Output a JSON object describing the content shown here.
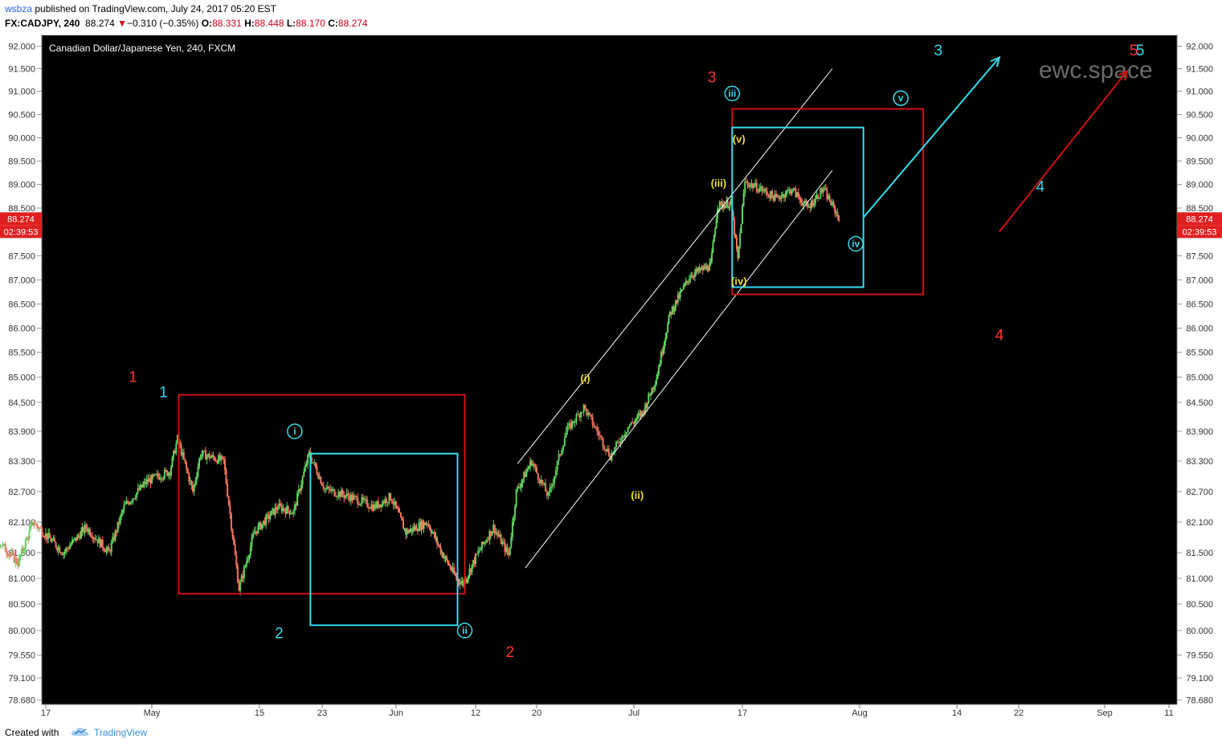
{
  "header": {
    "author": "wsbza",
    "published_text": "published on TradingView.com, July 24, 2017 05:20 EST",
    "symbol": "FX:CADJPY, 240",
    "last": "88.274",
    "change": "−0.310 (−0.35%)",
    "change_arrow": "▼",
    "o_label": "O:",
    "o": "88.331",
    "h_label": "H:",
    "h": "88.448",
    "l_label": "L:",
    "l": "88.170",
    "c_label": "C:",
    "c": "88.274"
  },
  "footer": {
    "created_with": "Created with",
    "brand": "TradingView"
  },
  "watermark": "ewc.space",
  "colors": {
    "up": "#5fd35f",
    "down": "#f07560",
    "red": "#ff3333",
    "cyan": "#33ddee",
    "yellow": "#eedd33",
    "box_red": "#d01010",
    "box_cyan": "#33ddee",
    "price_tag": "#e02020",
    "background": "#000000",
    "white": "#ffffff"
  },
  "chart_data": {
    "type": "candlestick",
    "title": "Canadian Dollar/Japanese Yen, 240, FXCM",
    "ylabel": "",
    "y_ticks": [
      "92.000",
      "91.500",
      "91.000",
      "90.500",
      "90.000",
      "89.500",
      "89.000",
      "88.500",
      "88.000",
      "87.500",
      "87.000",
      "86.500",
      "86.000",
      "85.500",
      "85.000",
      "84.500",
      "83.900",
      "83.300",
      "82.700",
      "82.100",
      "81.500",
      "81.000",
      "80.500",
      "80.000",
      "79.550",
      "79.100",
      "78.680"
    ],
    "x_ticks": [
      "17",
      "May",
      "15",
      "23",
      "Jun",
      "12",
      "20",
      "Jul",
      "17",
      "Aug",
      "14",
      "22",
      "Sep",
      "11"
    ],
    "last_price": "88.274",
    "countdown": "02:39:53",
    "price_path": [
      {
        "date": "2017-04-17",
        "price": 81.5
      },
      {
        "date": "2017-04-19",
        "price": 81.95
      },
      {
        "date": "2017-04-21",
        "price": 80.9
      },
      {
        "date": "2017-04-24",
        "price": 80.6
      },
      {
        "date": "2017-04-27",
        "price": 80.75
      },
      {
        "date": "2017-04-28",
        "price": 81.95
      },
      {
        "date": "2017-05-02",
        "price": 81.3
      },
      {
        "date": "2017-05-04",
        "price": 82.1
      },
      {
        "date": "2017-05-08",
        "price": 81.5
      },
      {
        "date": "2017-05-11",
        "price": 82.0
      },
      {
        "date": "2017-05-14",
        "price": 81.5
      },
      {
        "date": "2017-05-16",
        "price": 82.4
      },
      {
        "date": "2017-05-19",
        "price": 82.9
      },
      {
        "date": "2017-05-22",
        "price": 83.1
      },
      {
        "date": "2017-05-23",
        "price": 83.75
      },
      {
        "date": "2017-05-25",
        "price": 82.7
      },
      {
        "date": "2017-05-26",
        "price": 83.45
      },
      {
        "date": "2017-05-29",
        "price": 83.3
      },
      {
        "date": "2017-05-31",
        "price": 80.8
      },
      {
        "date": "2017-06-02",
        "price": 81.9
      },
      {
        "date": "2017-06-05",
        "price": 82.4
      },
      {
        "date": "2017-06-07",
        "price": 82.3
      },
      {
        "date": "2017-06-09",
        "price": 83.45
      },
      {
        "date": "2017-06-11",
        "price": 82.75
      },
      {
        "date": "2017-06-14",
        "price": 82.6
      },
      {
        "date": "2017-06-17",
        "price": 82.4
      },
      {
        "date": "2017-06-19",
        "price": 82.6
      },
      {
        "date": "2017-06-21",
        "price": 81.9
      },
      {
        "date": "2017-06-24",
        "price": 82.1
      },
      {
        "date": "2017-06-26",
        "price": 81.5
      },
      {
        "date": "2017-06-28",
        "price": 81.0
      },
      {
        "date": "2017-06-29",
        "price": 80.9
      },
      {
        "date": "2017-07-01",
        "price": 81.5
      },
      {
        "date": "2017-07-03",
        "price": 82.0
      },
      {
        "date": "2017-07-05",
        "price": 81.45
      },
      {
        "date": "2017-07-06",
        "price": 82.7
      },
      {
        "date": "2017-07-08",
        "price": 83.3
      },
      {
        "date": "2017-07-10",
        "price": 82.6
      },
      {
        "date": "2017-07-12",
        "price": 83.9
      },
      {
        "date": "2017-07-14",
        "price": 84.4
      },
      {
        "date": "2017-07-17",
        "price": 83.4
      },
      {
        "date": "2017-07-19",
        "price": 84.0
      },
      {
        "date": "2017-07-21",
        "price": 84.3
      },
      {
        "date": "2017-07-23",
        "price": 85.0
      },
      {
        "date": "2017-07-25",
        "price": 86.3
      },
      {
        "date": "2017-07-28",
        "price": 87.1
      },
      {
        "date": "2017-07-31",
        "price": 87.3
      },
      {
        "date": "2017-08-01",
        "price": 88.55
      },
      {
        "date": "2017-08-03",
        "price": 88.6
      },
      {
        "date": "2017-08-04",
        "price": 87.4
      },
      {
        "date": "2017-08-05",
        "price": 89.05
      },
      {
        "date": "2017-08-07",
        "price": 88.9
      },
      {
        "date": "2017-08-09",
        "price": 88.7
      },
      {
        "date": "2017-08-11",
        "price": 88.9
      },
      {
        "date": "2017-08-13",
        "price": 88.5
      },
      {
        "date": "2017-08-15",
        "price": 88.9
      },
      {
        "date": "2017-08-17",
        "price": 88.3
      }
    ],
    "trend_lines": [
      {
        "from": {
          "date": "2017-07-06",
          "price": 83.25
        },
        "to": {
          "date": "2017-08-16",
          "price": 91.5
        }
      },
      {
        "from": {
          "date": "2017-07-07",
          "price": 81.2
        },
        "to": {
          "date": "2017-08-16",
          "price": 89.3
        }
      }
    ],
    "boxes": [
      {
        "color": "red",
        "from": {
          "date": "2017-05-23",
          "price": 84.65
        },
        "to": {
          "date": "2017-06-29",
          "price": 80.7
        }
      },
      {
        "color": "cyan",
        "from": {
          "date": "2017-06-09",
          "price": 83.45
        },
        "to": {
          "date": "2017-06-28",
          "price": 80.1
        }
      },
      {
        "color": "red",
        "from": {
          "date": "2017-08-03",
          "price": 90.62
        },
        "to": {
          "date": "2017-08-28",
          "price": 86.7
        }
      },
      {
        "color": "cyan",
        "from": {
          "date": "2017-08-03",
          "price": 90.22
        },
        "to": {
          "date": "2017-08-20",
          "price": 86.85
        }
      }
    ],
    "arrows": [
      {
        "color": "cyan",
        "from": {
          "date": "2017-08-20",
          "price": 88.3
        },
        "to": {
          "date": "2017-09-07",
          "price": 91.75
        }
      },
      {
        "color": "red",
        "from": {
          "date": "2017-09-07",
          "price": 88.0
        },
        "to": {
          "date": "2017-09-23",
          "price": 91.45
        }
      }
    ],
    "annotations": [
      {
        "text": "1",
        "color": "red",
        "date": "2017-05-17",
        "price": 85.0
      },
      {
        "text": "1",
        "color": "cyan",
        "date": "2017-05-21",
        "price": 84.7
      },
      {
        "text": "2",
        "color": "cyan",
        "date": "2017-06-05",
        "price": 79.95
      },
      {
        "text": "2",
        "color": "red",
        "date": "2017-07-05",
        "price": 79.6
      },
      {
        "text": "3",
        "color": "red",
        "date": "2017-07-31",
        "price": 91.3
      },
      {
        "text": "3",
        "color": "cyan",
        "date": "2017-08-30",
        "price": 91.9
      },
      {
        "text": "4",
        "color": "cyan",
        "date": "2017-09-12",
        "price": 88.95
      },
      {
        "text": "4",
        "color": "red",
        "date": "2017-09-07",
        "price": 85.85
      },
      {
        "text": "5",
        "color": "red",
        "date": "2017-09-24",
        "price": 91.9
      },
      {
        "text": "5",
        "color": "cyan",
        "date": "2017-09-25",
        "price": 91.9
      },
      {
        "text": "i",
        "color": "cyan",
        "circled": true,
        "date": "2017-06-07",
        "price": 83.9
      },
      {
        "text": "ii",
        "color": "cyan",
        "circled": true,
        "date": "2017-06-29",
        "price": 80.0
      },
      {
        "text": "iii",
        "color": "cyan",
        "circled": true,
        "date": "2017-08-03",
        "price": 90.95
      },
      {
        "text": "iv",
        "color": "cyan",
        "circled": true,
        "date": "2017-08-19",
        "price": 87.75
      },
      {
        "text": "v",
        "color": "cyan",
        "circled": true,
        "date": "2017-08-25",
        "price": 90.85
      },
      {
        "text": "(i)",
        "color": "yellow",
        "date": "2017-07-14",
        "price": 85.0
      },
      {
        "text": "(ii)",
        "color": "yellow",
        "date": "2017-07-20",
        "price": 82.65
      },
      {
        "text": "(iii)",
        "color": "yellow",
        "date": "2017-08-01",
        "price": 89.05
      },
      {
        "text": "(iv)",
        "color": "yellow",
        "date": "2017-08-04",
        "price": 87.0
      },
      {
        "text": "(v)",
        "color": "yellow",
        "date": "2017-08-04",
        "price": 90.0
      }
    ]
  }
}
